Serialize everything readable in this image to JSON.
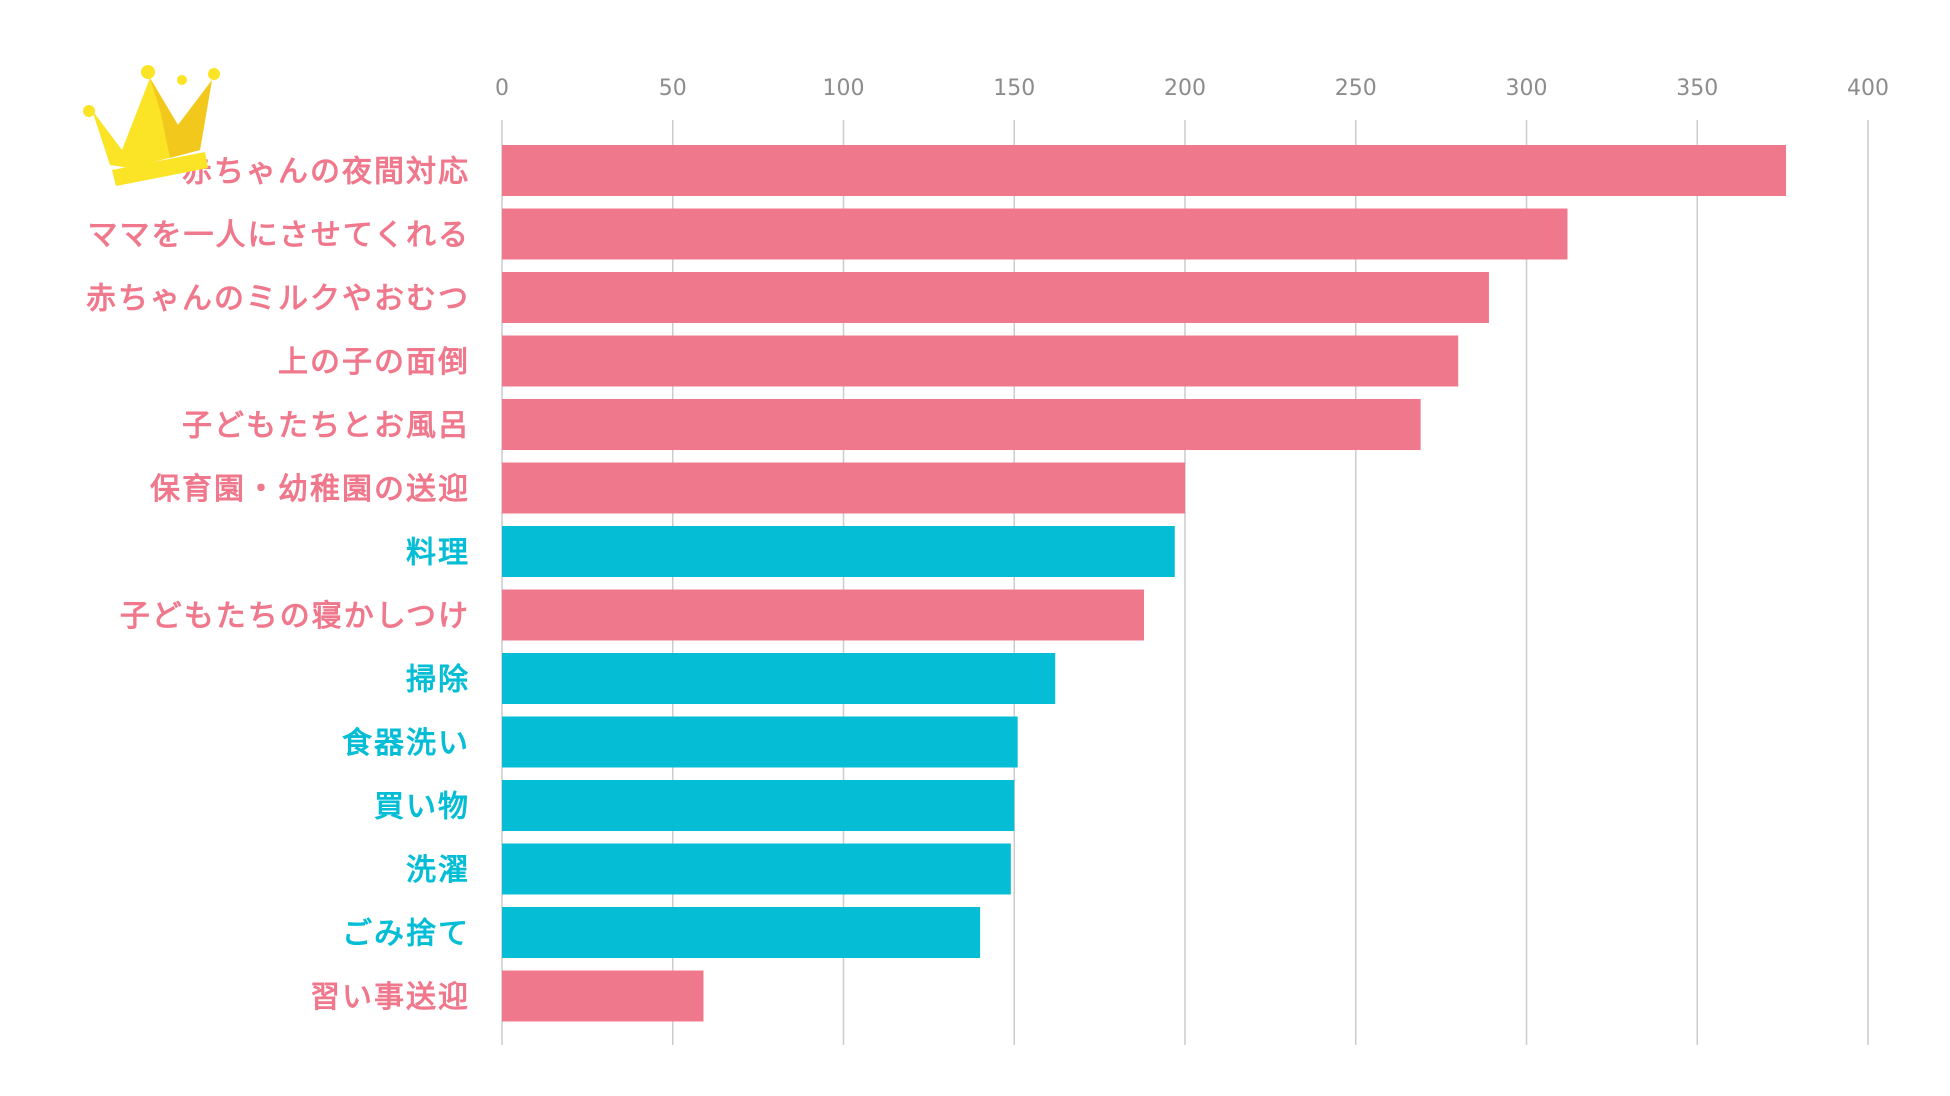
{
  "chart_data": {
    "type": "bar",
    "orientation": "horizontal",
    "title": "",
    "xlabel": "",
    "ylabel": "",
    "xlim": [
      0,
      400
    ],
    "x_ticks": [
      0,
      50,
      100,
      150,
      200,
      250,
      300,
      350,
      400
    ],
    "x_tick_labels": [
      "0",
      "50",
      "100",
      "150",
      "200",
      "250",
      "300",
      "350",
      "400"
    ],
    "axis_position": "top",
    "grid": true,
    "legend": "none",
    "categories": [
      "赤ちゃんの夜間対応",
      "ママを一人にさせてくれる",
      "赤ちゃんのミルクやおむつ",
      "上の子の面倒",
      "子どもたちとお風呂",
      "保育園・幼稚園の送迎",
      "料理",
      "子どもたちの寝かしつけ",
      "掃除",
      "食器洗い",
      "買い物",
      "洗濯",
      "ごみ捨て",
      "習い事送迎"
    ],
    "values": [
      376,
      312,
      289,
      280,
      269,
      200,
      197,
      188,
      162,
      151,
      150,
      149,
      140,
      59
    ],
    "bar_groups": [
      "pink",
      "pink",
      "pink",
      "pink",
      "pink",
      "pink",
      "blue",
      "pink",
      "blue",
      "blue",
      "blue",
      "blue",
      "blue",
      "pink"
    ]
  },
  "colors": {
    "pink": "#F0788C",
    "blue": "#05BED6",
    "grid": "#cccccc",
    "tick_text": "#8c8c8c",
    "crown": "#FBE425",
    "crown_shade": "#F2C81C"
  },
  "decoration": {
    "crown_icon": "crown-icon"
  }
}
